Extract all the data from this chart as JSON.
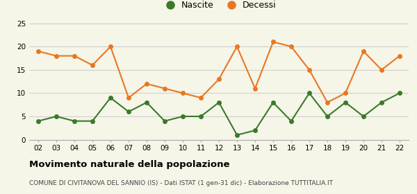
{
  "years": [
    "02",
    "03",
    "04",
    "05",
    "06",
    "07",
    "08",
    "09",
    "10",
    "11",
    "12",
    "13",
    "14",
    "15",
    "16",
    "17",
    "18",
    "19",
    "20",
    "21",
    "22"
  ],
  "nascite": [
    4,
    5,
    4,
    4,
    9,
    6,
    8,
    4,
    5,
    5,
    8,
    1,
    2,
    8,
    4,
    10,
    5,
    8,
    5,
    8,
    10
  ],
  "decessi": [
    19,
    18,
    18,
    16,
    20,
    9,
    12,
    11,
    10,
    9,
    13,
    20,
    11,
    21,
    20,
    15,
    8,
    10,
    19,
    15,
    18
  ],
  "nascite_color": "#3a7a2a",
  "decessi_color": "#e87722",
  "ylim": [
    0,
    25
  ],
  "yticks": [
    0,
    5,
    10,
    15,
    20,
    25
  ],
  "title": "Movimento naturale della popolazione",
  "subtitle": "COMUNE DI CIVITANOVA DEL SANNIO (IS) - Dati ISTAT (1 gen-31 dic) - Elaborazione TUTTITALIA.IT",
  "legend_nascite": "Nascite",
  "legend_decessi": "Decessi",
  "background_color": "#f5f5e8",
  "grid_color": "#cccccc",
  "marker_size": 5,
  "line_width": 1.5
}
